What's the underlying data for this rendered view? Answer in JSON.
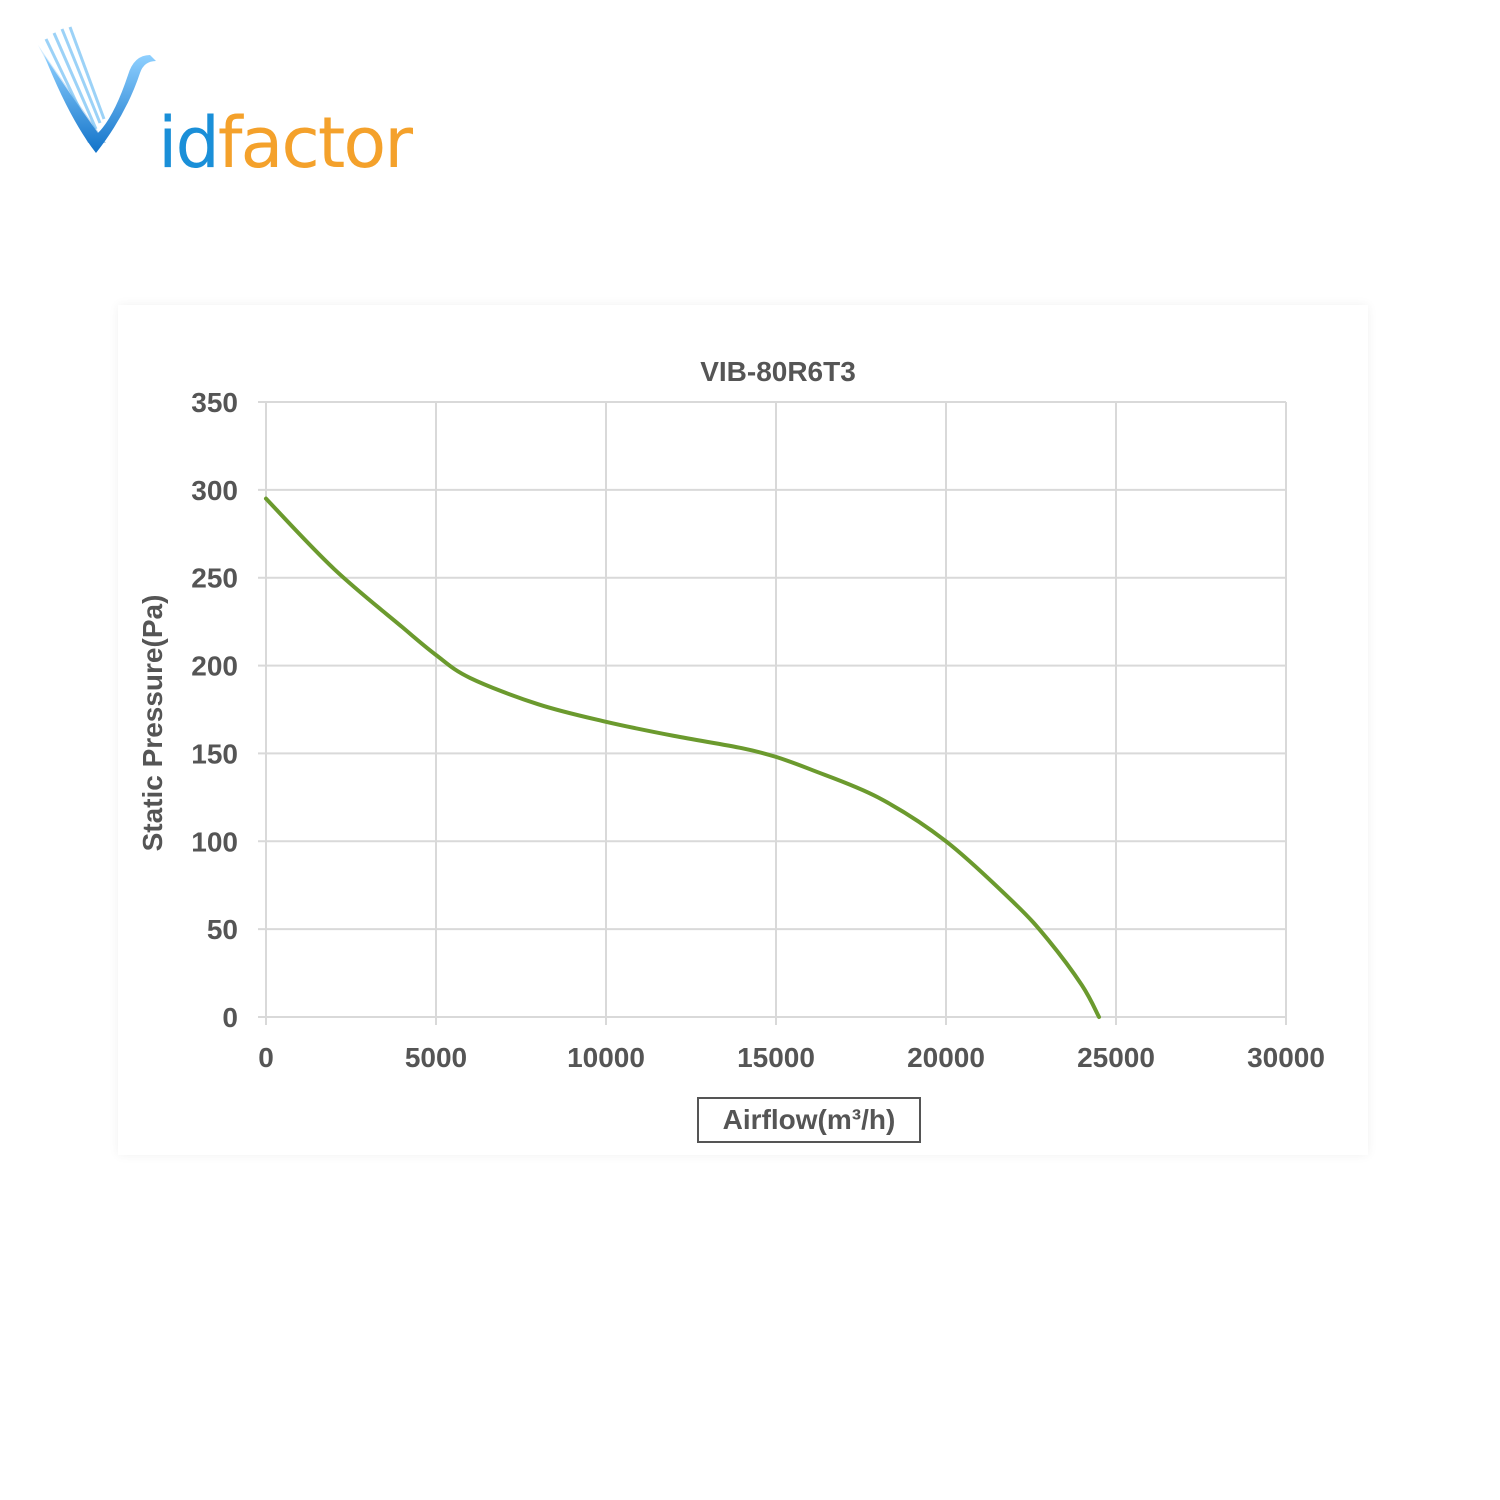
{
  "brand": {
    "name_part1": "id",
    "name_part2": "factor",
    "color_blue": "#1a8fd8",
    "color_orange": "#f4a12b"
  },
  "chart_data": {
    "type": "line",
    "title": "VIB-80R6T3",
    "xlabel": "Airflow(m³/h)",
    "ylabel": "Static Pressure(Pa)",
    "xlim": [
      0,
      30000
    ],
    "ylim": [
      0,
      350
    ],
    "xticks": [
      0,
      5000,
      10000,
      15000,
      20000,
      25000,
      30000
    ],
    "yticks": [
      0,
      50,
      100,
      150,
      200,
      250,
      300,
      350
    ],
    "grid": true,
    "series": [
      {
        "color": "#6b9a2e",
        "x": [
          0,
          2000,
          4000,
          5000,
          6000,
          8000,
          10000,
          12000,
          14000,
          15000,
          16000,
          18000,
          20000,
          22000,
          23000,
          24000,
          24500
        ],
        "y": [
          295,
          255,
          222,
          206,
          193,
          178,
          168,
          160,
          153,
          148,
          141,
          125,
          100,
          65,
          44,
          18,
          0
        ]
      }
    ]
  }
}
